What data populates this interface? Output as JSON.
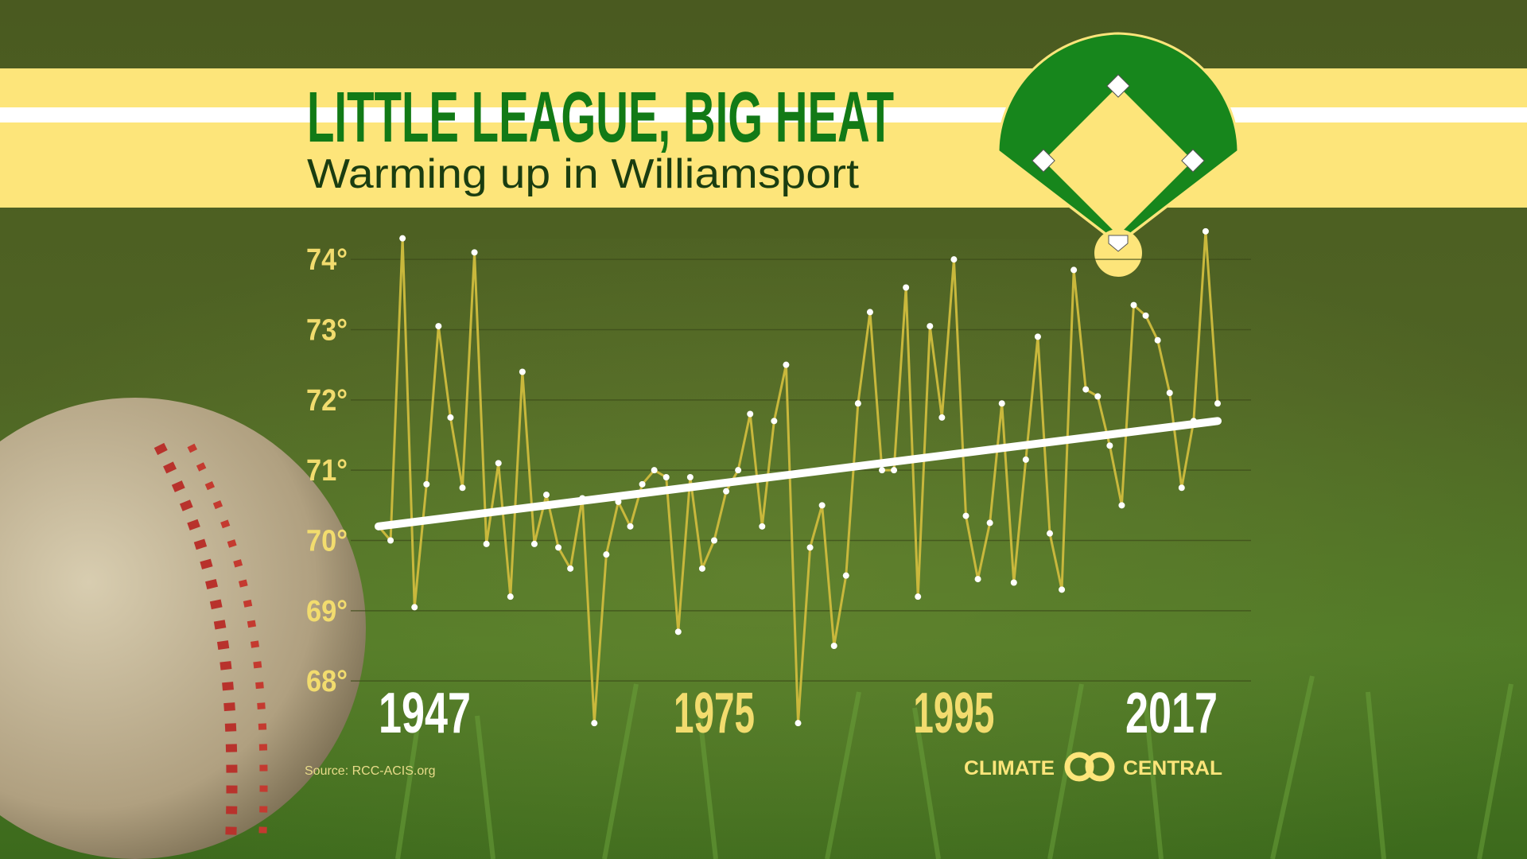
{
  "chart_data": {
    "type": "line",
    "title": "LITTLE LEAGUE, BIG HEAT",
    "subtitle": "Warming up in Williamsport",
    "source": "Source: RCC-ACIS.org",
    "branding": {
      "left": "CLIMATE",
      "right": "CENTRAL"
    },
    "x": [
      1947,
      1948,
      1949,
      1950,
      1951,
      1952,
      1953,
      1954,
      1955,
      1956,
      1957,
      1958,
      1959,
      1960,
      1961,
      1962,
      1963,
      1964,
      1965,
      1966,
      1967,
      1968,
      1969,
      1970,
      1971,
      1972,
      1973,
      1974,
      1975,
      1976,
      1977,
      1978,
      1979,
      1980,
      1981,
      1982,
      1983,
      1984,
      1985,
      1986,
      1987,
      1988,
      1989,
      1990,
      1991,
      1992,
      1993,
      1994,
      1995,
      1996,
      1997,
      1998,
      1999,
      2000,
      2001,
      2002,
      2003,
      2004,
      2005,
      2006,
      2007,
      2008,
      2009,
      2010,
      2011,
      2012,
      2013,
      2014,
      2015,
      2016,
      2017
    ],
    "values": [
      70.2,
      70.0,
      74.3,
      69.05,
      70.8,
      73.05,
      71.75,
      70.75,
      74.1,
      69.95,
      71.1,
      69.2,
      72.4,
      69.95,
      70.65,
      69.9,
      69.6,
      70.6,
      67.4,
      69.8,
      70.55,
      70.2,
      70.8,
      71.0,
      70.9,
      68.7,
      70.9,
      69.6,
      70.0,
      70.7,
      71.0,
      71.8,
      70.2,
      71.7,
      72.5,
      67.4,
      69.9,
      70.5,
      68.5,
      69.5,
      71.95,
      73.25,
      71.0,
      71.0,
      73.6,
      69.2,
      73.05,
      71.75,
      74.0,
      70.35,
      69.45,
      70.25,
      71.95,
      69.4,
      71.15,
      72.9,
      70.1,
      69.3,
      73.85,
      72.15,
      72.05,
      71.35,
      70.5,
      73.35,
      73.2,
      72.85,
      72.1,
      70.75,
      71.7,
      74.4,
      71.95
    ],
    "color": "#c9b83c",
    "point_color": "#ffffff",
    "trend": {
      "x": [
        1947,
        2017
      ],
      "values": [
        70.2,
        71.7
      ],
      "color": "#ffffff"
    },
    "xlim": [
      1947,
      2017
    ],
    "xticks": [
      1947,
      1975,
      1995,
      2017
    ],
    "xtick_colors": [
      "#ffffff",
      "#f2dc6e",
      "#f2dc6e",
      "#ffffff"
    ],
    "ylim": [
      67.3,
      74.5
    ],
    "yticks": [
      {
        "value": 68,
        "label": "68°"
      },
      {
        "value": 69,
        "label": "69°"
      },
      {
        "value": 70,
        "label": "70°"
      },
      {
        "value": 71,
        "label": "71°"
      },
      {
        "value": 72,
        "label": "72°"
      },
      {
        "value": 73,
        "label": "73°"
      },
      {
        "value": 74,
        "label": "74°"
      }
    ],
    "grid": true
  }
}
